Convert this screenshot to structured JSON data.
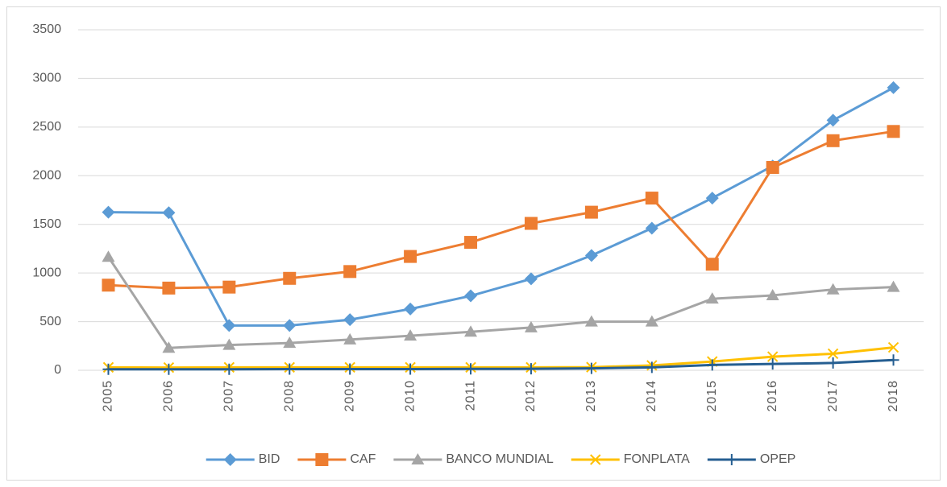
{
  "chart_data": {
    "type": "line",
    "categories": [
      "2005",
      "2006",
      "2007",
      "2008",
      "2009",
      "2010",
      "2011",
      "2012",
      "2013",
      "2014",
      "2015",
      "2016",
      "2017",
      "2018"
    ],
    "series": [
      {
        "name": "BID",
        "color": "#5b9bd5",
        "marker": "diamond",
        "values": [
          1625,
          1620,
          460,
          460,
          520,
          630,
          765,
          940,
          1180,
          1460,
          1770,
          2100,
          2570,
          2905
        ]
      },
      {
        "name": "CAF",
        "color": "#ed7d31",
        "marker": "square",
        "values": [
          875,
          845,
          855,
          945,
          1015,
          1170,
          1315,
          1510,
          1625,
          1770,
          1090,
          2085,
          2360,
          2455
        ]
      },
      {
        "name": "BANCO MUNDIAL",
        "color": "#a5a5a5",
        "marker": "triangle",
        "values": [
          1165,
          230,
          260,
          280,
          315,
          355,
          395,
          440,
          500,
          500,
          735,
          770,
          830,
          855
        ]
      },
      {
        "name": "FONPLATA",
        "color": "#ffc000",
        "marker": "x",
        "values": [
          30,
          28,
          30,
          30,
          30,
          30,
          30,
          30,
          32,
          50,
          90,
          140,
          170,
          235
        ]
      },
      {
        "name": "OPEP",
        "color": "#255e91",
        "marker": "plus",
        "values": [
          10,
          10,
          10,
          12,
          12,
          12,
          14,
          15,
          20,
          30,
          55,
          65,
          75,
          105
        ]
      }
    ],
    "ylim": [
      0,
      3500
    ],
    "yticks": [
      0,
      500,
      1000,
      1500,
      2000,
      2500,
      3000,
      3500
    ],
    "grid": true,
    "legend": "bottom"
  }
}
